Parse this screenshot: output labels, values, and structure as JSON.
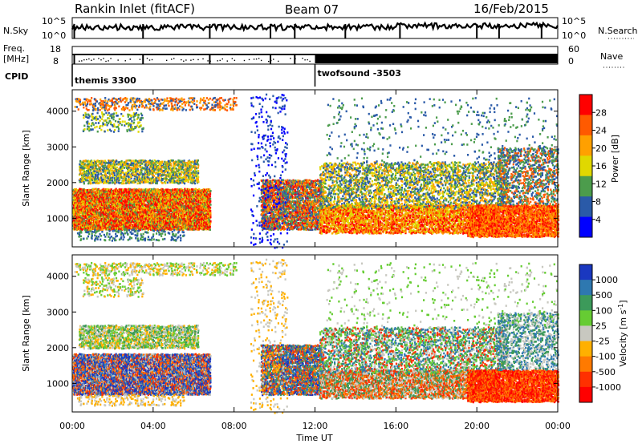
{
  "header": {
    "title": "Rankin Inlet (fitACF)",
    "beam": "Beam 07",
    "date": "16/Feb/2015"
  },
  "strips": {
    "nsky_label": "N.Sky",
    "nsky_ticks": [
      "10^5",
      "10^0"
    ],
    "nsearch_label": "N.Search",
    "freq_label_1": "Freq.",
    "freq_label_2": "[MHz]",
    "freq_ticks": [
      "18",
      "8"
    ],
    "nave_label": "Nave",
    "nave_ticks": [
      "60",
      "0"
    ],
    "cpid_label": "CPID",
    "cpid_segments": [
      {
        "start_hour": 0.0,
        "name": "themis 3300"
      },
      {
        "start_hour": 12.0,
        "name": "twofsound -3503"
      }
    ]
  },
  "chart_data": [
    {
      "type": "heatmap",
      "parameter": "power",
      "ylabel": "Slant Range [km]",
      "y_ticks": [
        1000,
        2000,
        3000,
        4000
      ],
      "ylim": [
        200,
        4600
      ],
      "xlim": [
        0,
        24
      ],
      "colorbar": {
        "label": "Power [dB]",
        "ticks": [
          "28",
          "24",
          "20",
          "16",
          "12",
          "8",
          "4"
        ],
        "colors": [
          "#ff0000",
          "#ff5a00",
          "#ffa000",
          "#e0d800",
          "#4c9c4c",
          "#2a5aa8",
          "#0000ff"
        ]
      }
    },
    {
      "type": "heatmap",
      "parameter": "velocity",
      "ylabel": "Slant Range [km]",
      "y_ticks": [
        1000,
        2000,
        3000,
        4000
      ],
      "ylim": [
        200,
        4600
      ],
      "xlim": [
        0,
        24
      ],
      "colorbar": {
        "label": "Velocity [m s",
        "label_sup": "-1",
        "label_close": "]",
        "ticks": [
          "1000",
          "500",
          "100",
          "25",
          "-25",
          "-100",
          "-500",
          "-1000"
        ],
        "colors": [
          "#1a38c0",
          "#2e78b0",
          "#3c9a5a",
          "#66cc33",
          "#c8c8c0",
          "#ffb000",
          "#ff7a00",
          "#ff3000",
          "#ff0000"
        ]
      }
    }
  ],
  "x_axis": {
    "label": "Time UT",
    "ticks": [
      "00:00",
      "04:00",
      "08:00",
      "12:00",
      "16:00",
      "20:00",
      "00:00"
    ]
  }
}
